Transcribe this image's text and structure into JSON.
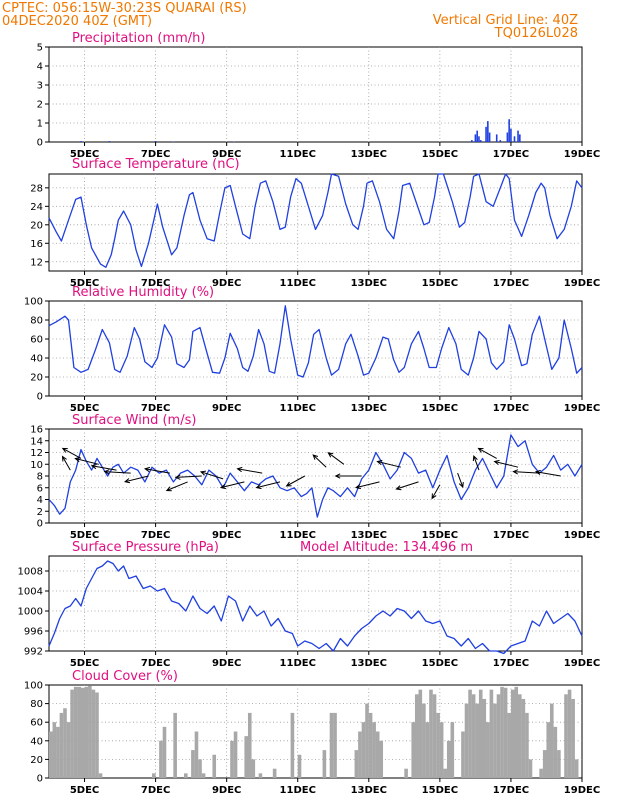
{
  "header": {
    "line1_left": "CPTEC:   056:15W-30:23S   QUARAI (RS)",
    "line2_left": "04DEC2020 40Z (GMT)",
    "line1_right": "Vertical Grid Line: 40Z",
    "line2_right": "TQ0126L028"
  },
  "colors": {
    "header": "#f07800",
    "panel_title": "#e01080",
    "series_line": "#2040e0",
    "cloud_bar": "#a8a8a8",
    "wind_arrow": "#000000",
    "grid": "#9a9a9a"
  },
  "x_axis": {
    "tick_labels": [
      "5DEC",
      "7DEC",
      "9DEC",
      "11DEC",
      "13DEC",
      "15DEC",
      "17DEC",
      "19DEC"
    ],
    "tick_days": [
      5,
      7,
      9,
      11,
      13,
      15,
      17,
      19
    ],
    "xlim_days": [
      4.0,
      19.0
    ]
  },
  "chart_data": [
    {
      "type": "bar",
      "title": "Precipitation (mm/h)",
      "ylim": [
        0,
        5
      ],
      "yticks": [
        0,
        1,
        2,
        3,
        4,
        5
      ],
      "grid": true,
      "x": [
        4.9,
        5.7,
        7.0,
        7.5,
        9.2,
        15.9,
        16.0,
        16.05,
        16.1,
        16.15,
        16.3,
        16.35,
        16.4,
        16.6,
        16.7,
        16.9,
        16.95,
        17.0,
        17.1,
        17.2,
        17.25
      ],
      "values": [
        0.05,
        0.05,
        0.05,
        0.03,
        0.03,
        0.1,
        0.4,
        0.6,
        0.3,
        0.1,
        0.8,
        1.1,
        0.5,
        0.4,
        0.1,
        0.5,
        1.2,
        0.7,
        0.3,
        0.6,
        0.4
      ]
    },
    {
      "type": "line",
      "title": "Surface Temperature (nC)",
      "ylim": [
        10,
        31
      ],
      "yticks": [
        12,
        16,
        20,
        24,
        28
      ],
      "grid": true,
      "x": [
        4.0,
        4.1,
        4.2,
        4.35,
        4.55,
        4.75,
        4.9,
        5.05,
        5.2,
        5.45,
        5.6,
        5.75,
        5.85,
        5.95,
        6.1,
        6.3,
        6.45,
        6.6,
        6.8,
        6.95,
        7.05,
        7.2,
        7.45,
        7.6,
        7.8,
        7.95,
        8.05,
        8.25,
        8.45,
        8.65,
        8.8,
        8.95,
        9.1,
        9.25,
        9.45,
        9.65,
        9.8,
        9.95,
        10.1,
        10.3,
        10.5,
        10.65,
        10.8,
        10.95,
        11.1,
        11.3,
        11.5,
        11.7,
        11.85,
        11.95,
        12.15,
        12.35,
        12.55,
        12.7,
        12.85,
        12.95,
        13.1,
        13.3,
        13.5,
        13.7,
        13.85,
        13.95,
        14.15,
        14.35,
        14.55,
        14.7,
        14.85,
        14.95,
        15.1,
        15.35,
        15.55,
        15.7,
        15.85,
        15.95,
        16.1,
        16.3,
        16.5,
        16.7,
        16.85,
        16.95,
        17.1,
        17.3,
        17.5,
        17.7,
        17.85,
        17.95,
        18.1,
        18.3,
        18.5,
        18.7,
        18.85,
        19.0
      ],
      "values": [
        21.5,
        20.0,
        18.5,
        16.5,
        21.0,
        25.5,
        26.0,
        20.0,
        15.0,
        11.5,
        10.8,
        13.5,
        17.0,
        21.0,
        23.0,
        20.0,
        14.5,
        11.0,
        16.0,
        21.0,
        24.5,
        19.5,
        13.5,
        15.0,
        22.0,
        26.5,
        27.0,
        21.0,
        17.0,
        16.5,
        22.5,
        28.0,
        28.5,
        24.0,
        18.0,
        17.0,
        24.0,
        29.0,
        29.5,
        25.0,
        19.0,
        19.5,
        26.0,
        30.0,
        29.0,
        24.0,
        19.0,
        22.0,
        27.0,
        31.0,
        30.5,
        24.5,
        20.0,
        19.0,
        24.0,
        29.0,
        29.5,
        25.0,
        19.0,
        17.0,
        23.0,
        28.5,
        29.0,
        24.5,
        20.0,
        20.5,
        26.0,
        31.0,
        31.0,
        25.0,
        19.5,
        20.5,
        26.0,
        30.5,
        31.0,
        25.0,
        24.0,
        28.0,
        31.0,
        30.0,
        21.0,
        17.5,
        22.0,
        27.0,
        29.0,
        28.0,
        22.0,
        17.0,
        19.0,
        24.0,
        29.5,
        28.0
      ]
    },
    {
      "type": "line",
      "title": "Relative Humidity (%)",
      "ylim": [
        0,
        100
      ],
      "yticks": [
        0,
        20,
        40,
        60,
        80,
        100
      ],
      "grid": true,
      "x": [
        4.0,
        4.2,
        4.45,
        4.55,
        4.7,
        4.9,
        5.1,
        5.3,
        5.5,
        5.7,
        5.85,
        6.0,
        6.2,
        6.4,
        6.55,
        6.7,
        6.9,
        7.05,
        7.25,
        7.45,
        7.6,
        7.8,
        7.95,
        8.05,
        8.25,
        8.45,
        8.6,
        8.8,
        8.95,
        9.1,
        9.3,
        9.45,
        9.6,
        9.75,
        9.9,
        10.05,
        10.2,
        10.35,
        10.5,
        10.65,
        10.8,
        11.0,
        11.15,
        11.3,
        11.45,
        11.6,
        11.8,
        11.95,
        12.15,
        12.35,
        12.5,
        12.7,
        12.85,
        13.0,
        13.2,
        13.4,
        13.55,
        13.7,
        13.85,
        14.0,
        14.2,
        14.4,
        14.55,
        14.7,
        14.9,
        15.05,
        15.25,
        15.45,
        15.6,
        15.8,
        15.95,
        16.1,
        16.3,
        16.45,
        16.6,
        16.8,
        16.95,
        17.1,
        17.3,
        17.45,
        17.6,
        17.8,
        17.95,
        18.15,
        18.35,
        18.5,
        18.7,
        18.85,
        19.0
      ],
      "values": [
        74.0,
        78.0,
        84.0,
        80.0,
        30.0,
        25.0,
        28.0,
        48.0,
        70.0,
        56.0,
        28.0,
        25.0,
        42.0,
        72.0,
        60.0,
        36.0,
        30.0,
        40.0,
        75.0,
        62.0,
        34.0,
        30.0,
        38.0,
        68.0,
        72.0,
        45.0,
        25.0,
        24.0,
        40.0,
        66.0,
        50.0,
        30.0,
        26.0,
        42.0,
        70.0,
        55.0,
        26.0,
        24.0,
        55.0,
        95.0,
        60.0,
        22.0,
        20.0,
        35.0,
        65.0,
        70.0,
        40.0,
        22.0,
        28.0,
        55.0,
        65.0,
        42.0,
        22.0,
        24.0,
        40.0,
        62.0,
        60.0,
        38.0,
        25.0,
        30.0,
        55.0,
        68.0,
        50.0,
        30.0,
        30.0,
        50.0,
        72.0,
        55.0,
        28.0,
        22.0,
        40.0,
        68.0,
        60.0,
        35.0,
        28.0,
        36.0,
        75.0,
        60.0,
        32.0,
        34.0,
        65.0,
        84.0,
        60.0,
        28.0,
        40.0,
        80.0,
        50.0,
        24.0,
        30.0
      ]
    },
    {
      "type": "line",
      "title": "Surface Wind (m/s)",
      "ylim": [
        0,
        16
      ],
      "yticks": [
        0,
        2,
        4,
        6,
        8,
        10,
        12,
        14,
        16
      ],
      "grid": true,
      "x": [
        4.0,
        4.15,
        4.3,
        4.45,
        4.6,
        4.75,
        4.9,
        5.05,
        5.2,
        5.35,
        5.5,
        5.65,
        5.8,
        5.95,
        6.1,
        6.3,
        6.5,
        6.7,
        6.9,
        7.1,
        7.3,
        7.5,
        7.7,
        7.9,
        8.1,
        8.3,
        8.5,
        8.7,
        8.9,
        9.1,
        9.3,
        9.5,
        9.7,
        9.9,
        10.1,
        10.3,
        10.5,
        10.7,
        10.9,
        11.1,
        11.25,
        11.4,
        11.55,
        11.7,
        11.85,
        12.0,
        12.2,
        12.4,
        12.6,
        12.8,
        13.0,
        13.2,
        13.4,
        13.6,
        13.8,
        14.0,
        14.2,
        14.4,
        14.6,
        14.8,
        15.0,
        15.2,
        15.4,
        15.6,
        15.8,
        16.0,
        16.2,
        16.4,
        16.6,
        16.8,
        17.0,
        17.2,
        17.4,
        17.6,
        17.8,
        18.0,
        18.2,
        18.4,
        18.6,
        18.8,
        19.0
      ],
      "values": [
        4.0,
        3.0,
        1.5,
        2.5,
        7.0,
        9.0,
        12.5,
        10.5,
        9.0,
        11.0,
        9.5,
        8.0,
        9.5,
        10.0,
        8.5,
        9.5,
        9.0,
        7.0,
        9.5,
        8.5,
        9.0,
        7.0,
        8.5,
        9.0,
        8.0,
        6.5,
        9.0,
        8.0,
        6.0,
        8.5,
        7.0,
        5.5,
        7.0,
        6.5,
        7.5,
        8.0,
        6.0,
        5.5,
        6.0,
        4.5,
        5.0,
        6.0,
        1.0,
        4.0,
        6.0,
        5.5,
        4.5,
        6.0,
        4.5,
        7.5,
        9.0,
        12.0,
        10.0,
        7.5,
        9.0,
        12.0,
        11.0,
        8.5,
        9.0,
        6.0,
        9.0,
        11.5,
        7.0,
        4.0,
        6.0,
        9.0,
        11.0,
        8.5,
        6.0,
        8.0,
        15.0,
        13.0,
        14.0,
        10.0,
        8.5,
        9.5,
        11.5,
        9.0,
        10.0,
        8.0,
        10.0
      ],
      "vectors": [
        {
          "x": 4.6,
          "speed": 9.0,
          "u": -0.3,
          "v": 0.95
        },
        {
          "x": 4.9,
          "speed": 11.0,
          "u": -0.7,
          "v": 0.7
        },
        {
          "x": 5.4,
          "speed": 10.0,
          "u": -0.9,
          "v": 0.4
        },
        {
          "x": 5.9,
          "speed": 9.0,
          "u": -0.95,
          "v": 0.3
        },
        {
          "x": 6.3,
          "speed": 8.5,
          "u": -1.0,
          "v": 0.1
        },
        {
          "x": 6.8,
          "speed": 8.0,
          "u": -0.9,
          "v": -0.4
        },
        {
          "x": 7.4,
          "speed": 8.5,
          "u": -0.95,
          "v": 0.3
        },
        {
          "x": 7.9,
          "speed": 7.0,
          "u": -0.8,
          "v": -0.6
        },
        {
          "x": 8.3,
          "speed": 8.0,
          "u": -1.0,
          "v": -0.1
        },
        {
          "x": 8.9,
          "speed": 7.5,
          "u": -0.85,
          "v": 0.5
        },
        {
          "x": 9.5,
          "speed": 7.0,
          "u": -0.9,
          "v": -0.4
        },
        {
          "x": 10.0,
          "speed": 8.5,
          "u": -0.95,
          "v": 0.3
        },
        {
          "x": 10.5,
          "speed": 7.0,
          "u": -0.9,
          "v": -0.4
        },
        {
          "x": 11.2,
          "speed": 8.0,
          "u": -0.7,
          "v": -0.7
        },
        {
          "x": 11.8,
          "speed": 9.5,
          "u": -0.5,
          "v": 0.85
        },
        {
          "x": 12.3,
          "speed": 10.0,
          "u": -0.6,
          "v": 0.8
        },
        {
          "x": 12.8,
          "speed": 8.0,
          "u": -1.0,
          "v": 0.0
        },
        {
          "x": 13.3,
          "speed": 7.0,
          "u": -0.9,
          "v": -0.4
        },
        {
          "x": 13.9,
          "speed": 9.5,
          "u": -0.9,
          "v": 0.4
        },
        {
          "x": 14.4,
          "speed": 7.0,
          "u": -0.85,
          "v": -0.5
        },
        {
          "x": 15.0,
          "speed": 6.5,
          "u": -0.3,
          "v": -0.95
        },
        {
          "x": 15.5,
          "speed": 8.5,
          "u": 0.2,
          "v": -0.98
        },
        {
          "x": 16.1,
          "speed": 9.0,
          "u": -0.2,
          "v": 0.98
        },
        {
          "x": 16.6,
          "speed": 11.0,
          "u": -0.7,
          "v": 0.7
        },
        {
          "x": 17.2,
          "speed": 9.5,
          "u": -0.9,
          "v": 0.4
        },
        {
          "x": 17.8,
          "speed": 8.5,
          "u": -1.0,
          "v": 0.1
        },
        {
          "x": 18.4,
          "speed": 8.0,
          "u": -0.95,
          "v": 0.3
        }
      ]
    },
    {
      "type": "line",
      "title": "Surface Pressure (hPa)",
      "subtitle": "Model Altitude: 134.496 m",
      "ylim": [
        992,
        1011
      ],
      "yticks": [
        992,
        996,
        1000,
        1004,
        1008
      ],
      "grid": true,
      "x": [
        4.0,
        4.15,
        4.3,
        4.45,
        4.6,
        4.75,
        4.9,
        5.05,
        5.2,
        5.35,
        5.5,
        5.65,
        5.8,
        5.95,
        6.1,
        6.25,
        6.45,
        6.65,
        6.85,
        7.05,
        7.25,
        7.45,
        7.65,
        7.85,
        8.05,
        8.25,
        8.45,
        8.65,
        8.85,
        9.05,
        9.25,
        9.45,
        9.65,
        9.85,
        10.05,
        10.25,
        10.45,
        10.65,
        10.85,
        11.0,
        11.2,
        11.4,
        11.6,
        11.8,
        12.0,
        12.2,
        12.4,
        12.6,
        12.8,
        13.0,
        13.2,
        13.4,
        13.6,
        13.8,
        14.0,
        14.2,
        14.4,
        14.6,
        14.8,
        15.0,
        15.2,
        15.4,
        15.6,
        15.8,
        16.0,
        16.2,
        16.4,
        16.6,
        16.8,
        17.0,
        17.2,
        17.4,
        17.6,
        17.8,
        18.0,
        18.2,
        18.4,
        18.6,
        18.8,
        19.0
      ],
      "values": [
        993.0,
        995.5,
        998.5,
        1000.5,
        1001.0,
        1002.5,
        1001.0,
        1004.5,
        1006.5,
        1008.5,
        1009.0,
        1010.0,
        1009.5,
        1008.0,
        1009.0,
        1006.5,
        1007.0,
        1004.5,
        1005.0,
        1004.0,
        1004.5,
        1002.0,
        1001.5,
        1000.0,
        1003.0,
        1000.5,
        999.5,
        1001.0,
        998.0,
        1003.0,
        1002.0,
        998.0,
        1001.0,
        999.0,
        1000.0,
        997.0,
        998.5,
        996.0,
        995.5,
        993.0,
        994.0,
        993.5,
        992.5,
        993.5,
        992.0,
        994.5,
        993.0,
        995.0,
        996.5,
        997.5,
        999.0,
        1000.0,
        999.0,
        1000.5,
        1000.0,
        998.5,
        1000.0,
        998.0,
        997.5,
        998.0,
        995.0,
        994.5,
        993.0,
        994.5,
        992.5,
        993.5,
        992.0,
        992.0,
        991.5,
        993.0,
        993.5,
        994.0,
        998.0,
        997.0,
        1000.0,
        997.5,
        998.5,
        999.5,
        998.0,
        995.0
      ]
    },
    {
      "type": "bar",
      "title": "Cloud Cover (%)",
      "ylim": [
        0,
        100
      ],
      "yticks": [
        0,
        20,
        40,
        60,
        80,
        100
      ],
      "grid": true,
      "x": [
        4.05,
        4.15,
        4.25,
        4.35,
        4.45,
        4.55,
        4.65,
        4.75,
        4.85,
        4.95,
        5.05,
        5.15,
        5.25,
        5.35,
        5.45,
        5.55,
        5.65,
        5.75,
        5.85,
        5.95,
        6.05,
        6.15,
        6.25,
        6.35,
        6.45,
        6.55,
        6.65,
        6.75,
        6.85,
        6.95,
        7.05,
        7.15,
        7.25,
        7.35,
        7.45,
        7.55,
        7.65,
        7.75,
        7.85,
        7.95,
        8.05,
        8.15,
        8.25,
        8.35,
        8.45,
        8.55,
        8.65,
        8.75,
        8.85,
        8.95,
        9.05,
        9.15,
        9.25,
        9.35,
        9.45,
        9.55,
        9.65,
        9.75,
        9.85,
        9.95,
        10.05,
        10.15,
        10.25,
        10.35,
        10.45,
        10.55,
        10.65,
        10.75,
        10.85,
        10.95,
        11.05,
        11.15,
        11.25,
        11.35,
        11.45,
        11.55,
        11.65,
        11.75,
        11.85,
        11.95,
        12.05,
        12.15,
        12.25,
        12.35,
        12.45,
        12.55,
        12.65,
        12.75,
        12.85,
        12.95,
        13.05,
        13.15,
        13.25,
        13.35,
        13.45,
        13.55,
        13.65,
        13.75,
        13.85,
        13.95,
        14.05,
        14.15,
        14.25,
        14.35,
        14.45,
        14.55,
        14.65,
        14.75,
        14.85,
        14.95,
        15.05,
        15.15,
        15.25,
        15.35,
        15.45,
        15.55,
        15.65,
        15.75,
        15.85,
        15.95,
        16.05,
        16.15,
        16.25,
        16.35,
        16.45,
        16.55,
        16.65,
        16.75,
        16.85,
        16.95,
        17.05,
        17.15,
        17.25,
        17.35,
        17.45,
        17.55,
        17.65,
        17.75,
        17.85,
        17.95,
        18.05,
        18.15,
        18.25,
        18.35,
        18.45,
        18.55,
        18.65,
        18.75,
        18.85,
        18.95
      ],
      "values": [
        50,
        60,
        55,
        70,
        75,
        60,
        95,
        98,
        98,
        97,
        98,
        99,
        95,
        92,
        5,
        0,
        0,
        0,
        0,
        0,
        0,
        0,
        0,
        0,
        0,
        0,
        0,
        0,
        0,
        5,
        0,
        40,
        55,
        0,
        0,
        70,
        0,
        0,
        5,
        0,
        30,
        50,
        20,
        5,
        0,
        0,
        25,
        0,
        0,
        0,
        0,
        40,
        50,
        0,
        0,
        45,
        70,
        20,
        0,
        5,
        0,
        0,
        0,
        10,
        0,
        0,
        0,
        0,
        70,
        0,
        25,
        0,
        0,
        0,
        0,
        0,
        0,
        30,
        0,
        70,
        70,
        0,
        0,
        0,
        0,
        0,
        30,
        50,
        60,
        80,
        70,
        60,
        50,
        40,
        0,
        0,
        0,
        0,
        0,
        0,
        10,
        0,
        60,
        90,
        95,
        80,
        60,
        95,
        90,
        70,
        60,
        10,
        40,
        60,
        0,
        0,
        50,
        80,
        95,
        90,
        80,
        95,
        85,
        60,
        95,
        80,
        90,
        98,
        97,
        70,
        95,
        98,
        90,
        85,
        70,
        20,
        0,
        0,
        10,
        30,
        60,
        80,
        55,
        30,
        0,
        90,
        95,
        85,
        20,
        0
      ]
    }
  ]
}
